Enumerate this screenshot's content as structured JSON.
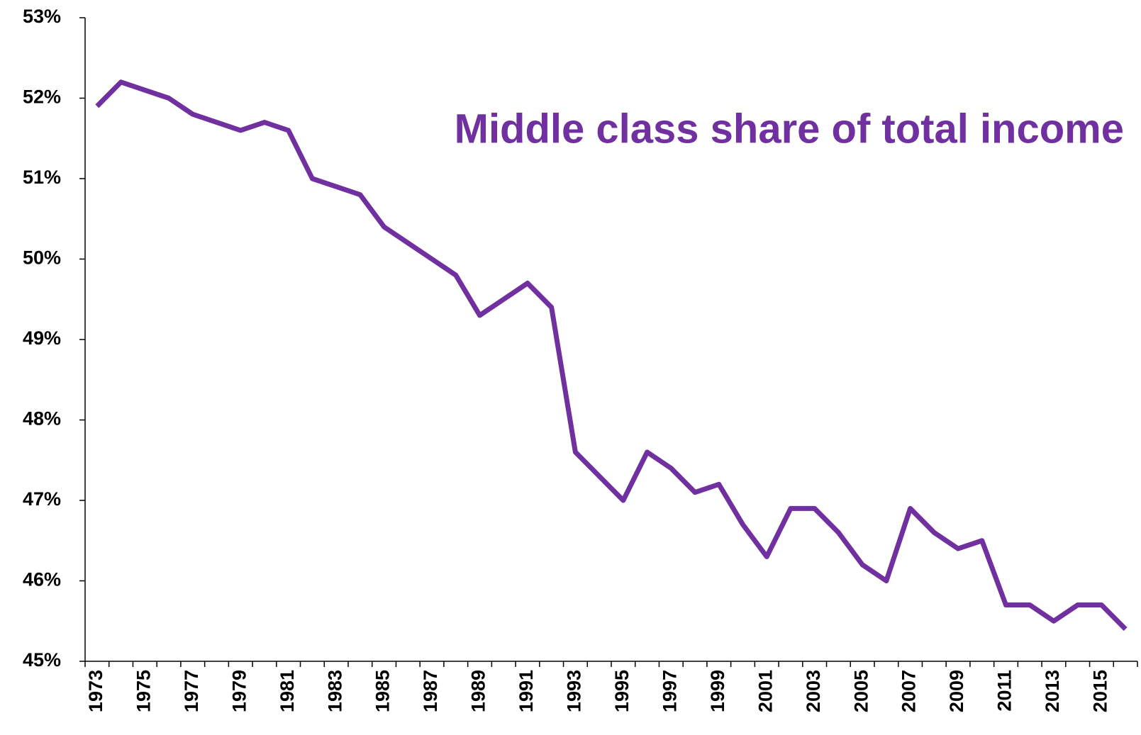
{
  "chart_data": {
    "type": "line",
    "title": "Middle class share of total income",
    "categories": [
      "1973",
      null,
      "1975",
      null,
      "1977",
      null,
      "1979",
      null,
      "1981",
      null,
      "1983",
      null,
      "1985",
      null,
      "1987",
      null,
      "1989",
      null,
      "1991",
      null,
      "1993",
      null,
      "1995",
      null,
      "1997",
      null,
      "1999",
      null,
      "2001",
      null,
      "2003",
      null,
      "2005",
      null,
      "2007",
      null,
      "2009",
      null,
      "2011",
      null,
      "2013",
      null,
      "2015",
      null
    ],
    "values": [
      51.9,
      52.2,
      52.1,
      52.0,
      51.8,
      51.7,
      51.6,
      51.7,
      51.6,
      51.0,
      50.9,
      50.8,
      50.4,
      50.2,
      50.0,
      49.8,
      49.3,
      49.5,
      49.7,
      49.4,
      47.6,
      47.3,
      47.0,
      47.6,
      47.4,
      47.1,
      47.2,
      46.7,
      46.3,
      46.9,
      46.9,
      46.6,
      46.2,
      46.0,
      46.9,
      46.6,
      46.4,
      46.5,
      45.7,
      45.7,
      45.5,
      45.7,
      45.7,
      45.4
    ],
    "color": "#7030a0",
    "ylim": [
      45,
      53
    ],
    "yticks": [
      {
        "value": 45,
        "label": "45%"
      },
      {
        "value": 46,
        "label": "46%"
      },
      {
        "value": 47,
        "label": "47%"
      },
      {
        "value": 48,
        "label": "48%"
      },
      {
        "value": 49,
        "label": "49%"
      },
      {
        "value": 50,
        "label": "50%"
      },
      {
        "value": 51,
        "label": "51%"
      },
      {
        "value": 52,
        "label": "52%"
      },
      {
        "value": 53,
        "label": "53%"
      }
    ],
    "grid": false
  }
}
